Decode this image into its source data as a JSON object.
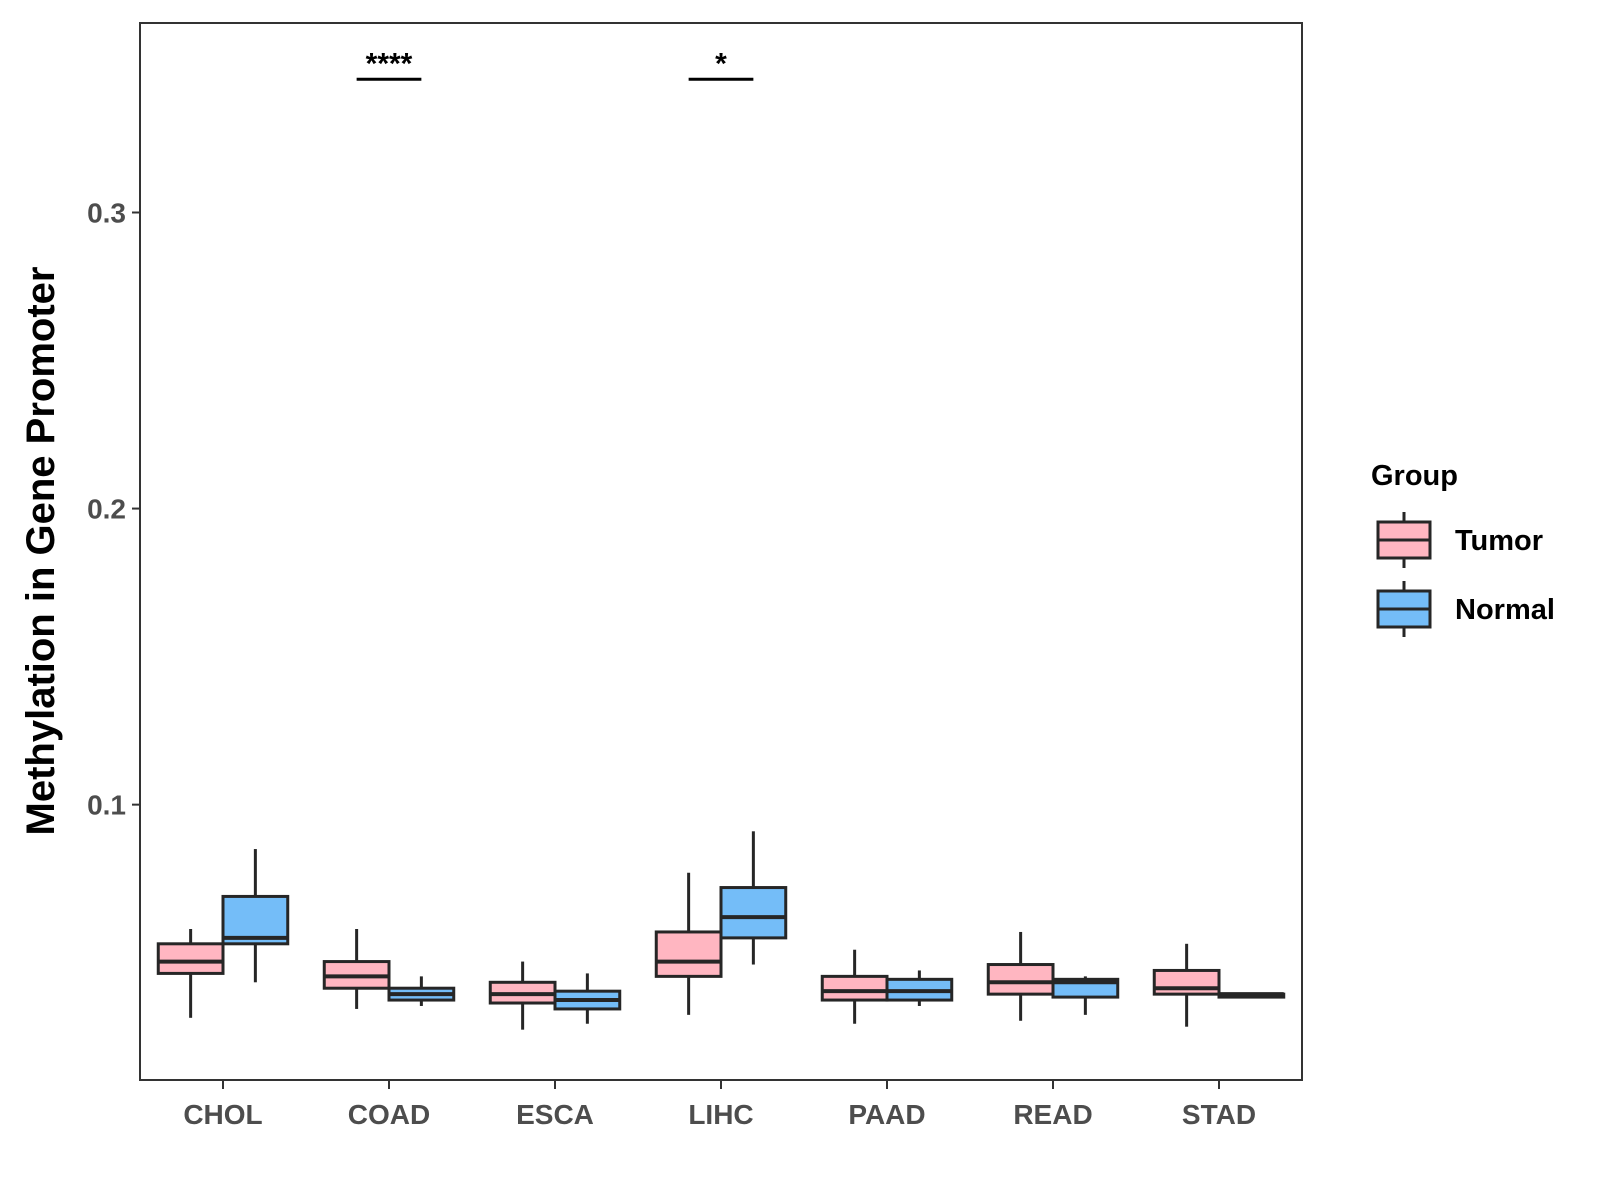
{
  "chart_data": {
    "type": "boxplot",
    "title": "",
    "xlabel": "",
    "ylabel": "Methylation in Gene Promoter",
    "ylim": [
      0.007,
      0.364
    ],
    "yticks": [
      {
        "value": 0.1,
        "label": "0.1"
      },
      {
        "value": 0.2,
        "label": "0.2"
      },
      {
        "value": 0.3,
        "label": "0.3"
      }
    ],
    "grid": false,
    "categories": [
      "CHOL",
      "COAD",
      "ESCA",
      "LIHC",
      "PAAD",
      "READ",
      "STAD"
    ],
    "legend": {
      "title": "Group",
      "position": "right",
      "entries": [
        {
          "name": "Tumor",
          "color": "#ffb6c1"
        },
        {
          "name": "Normal",
          "color": "#74bdf8"
        }
      ]
    },
    "series": [
      {
        "name": "Tumor",
        "color": "#ffb6c1",
        "boxes": [
          {
            "category": "CHOL",
            "min": 0.028,
            "q1": 0.043,
            "median": 0.047,
            "q3": 0.053,
            "max": 0.058
          },
          {
            "category": "COAD",
            "min": 0.031,
            "q1": 0.038,
            "median": 0.042,
            "q3": 0.047,
            "max": 0.058
          },
          {
            "category": "ESCA",
            "min": 0.024,
            "q1": 0.033,
            "median": 0.036,
            "q3": 0.04,
            "max": 0.047
          },
          {
            "category": "LIHC",
            "min": 0.029,
            "q1": 0.042,
            "median": 0.047,
            "q3": 0.057,
            "max": 0.077
          },
          {
            "category": "PAAD",
            "min": 0.026,
            "q1": 0.034,
            "median": 0.037,
            "q3": 0.042,
            "max": 0.051
          },
          {
            "category": "READ",
            "min": 0.027,
            "q1": 0.036,
            "median": 0.04,
            "q3": 0.046,
            "max": 0.057
          },
          {
            "category": "STAD",
            "min": 0.025,
            "q1": 0.036,
            "median": 0.038,
            "q3": 0.044,
            "max": 0.053
          }
        ]
      },
      {
        "name": "Normal",
        "color": "#74bdf8",
        "boxes": [
          {
            "category": "CHOL",
            "min": 0.04,
            "q1": 0.053,
            "median": 0.055,
            "q3": 0.069,
            "max": 0.085
          },
          {
            "category": "COAD",
            "min": 0.032,
            "q1": 0.034,
            "median": 0.036,
            "q3": 0.038,
            "max": 0.042
          },
          {
            "category": "ESCA",
            "min": 0.026,
            "q1": 0.031,
            "median": 0.034,
            "q3": 0.037,
            "max": 0.043
          },
          {
            "category": "LIHC",
            "min": 0.046,
            "q1": 0.055,
            "median": 0.062,
            "q3": 0.072,
            "max": 0.091
          },
          {
            "category": "PAAD",
            "min": 0.032,
            "q1": 0.034,
            "median": 0.037,
            "q3": 0.041,
            "max": 0.044
          },
          {
            "category": "READ",
            "min": 0.029,
            "q1": 0.035,
            "median": 0.04,
            "q3": 0.041,
            "max": 0.042
          },
          {
            "category": "STAD",
            "min": 0.035,
            "q1": 0.035,
            "median": 0.036,
            "q3": 0.036,
            "max": 0.036
          }
        ]
      }
    ],
    "annotations": [
      {
        "category": "COAD",
        "text": "****",
        "value": 0.345
      },
      {
        "category": "LIHC",
        "text": "*",
        "value": 0.345
      }
    ]
  }
}
